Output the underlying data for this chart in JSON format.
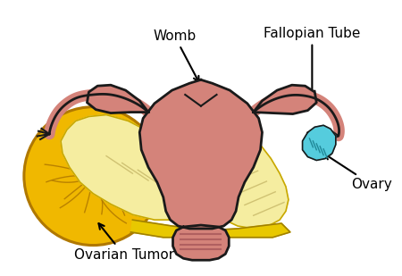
{
  "bg_color": "#ffffff",
  "womb_color": "#d4837a",
  "womb_outline": "#1a1a1a",
  "ligament_color": "#f5eda0",
  "ligament_outline": "#c8a800",
  "tumor_color": "#f0b800",
  "tumor_outline": "#b07800",
  "ovary_color": "#55ccdd",
  "ovary_outline": "#1a1a1a",
  "cervix_color": "#c87878",
  "outline_color": "#1a1a1a",
  "text_color": "#000000",
  "labels": {
    "womb": "Womb",
    "fallopian": "Fallopian Tube",
    "ovary": "Ovary",
    "tumor": "Ovarian Tumor"
  },
  "label_fontsize": 10,
  "figsize": [
    4.5,
    3.09
  ],
  "dpi": 100
}
